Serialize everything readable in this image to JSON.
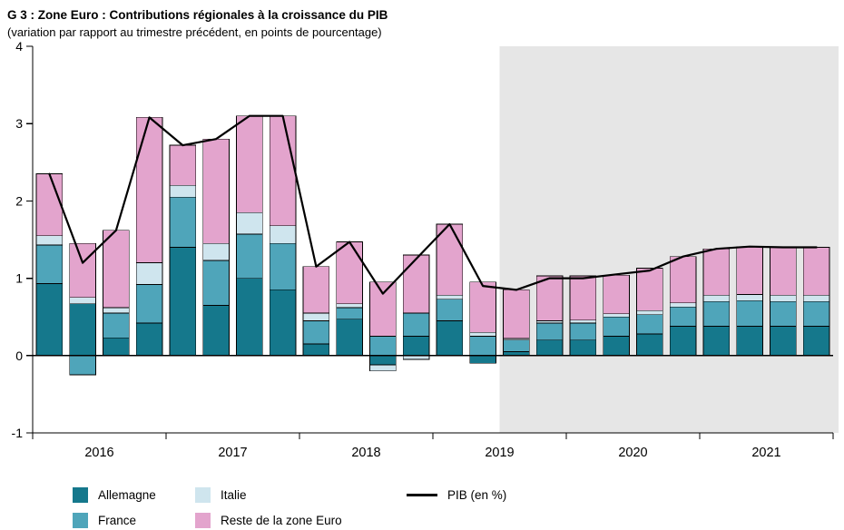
{
  "header": {
    "title": "G 3 : Zone Euro : Contributions régionales à la croissance du PIB",
    "subtitle": "(variation par rapport au trimestre précédent, en points de pourcentage)"
  },
  "legend": {
    "items": [
      {
        "label": "Allemagne",
        "color": "#15788c"
      },
      {
        "label": "France",
        "color": "#4fa5ba"
      },
      {
        "label": "Italie",
        "color": "#cfe5ee"
      },
      {
        "label": "Reste de la zone Euro",
        "color": "#e3a4cd"
      }
    ],
    "line": {
      "label": "PIB (en %)",
      "color": "#000000"
    }
  },
  "chart_data": {
    "type": "bar",
    "stacked": true,
    "title": "G 3 : Zone Euro : Contributions régionales à la croissance du PIB",
    "subtitle": "(variation par rapport au trimestre précédent, en points de pourcentage)",
    "categories": [
      "2016T1",
      "2016T2",
      "2016T3",
      "2016T4",
      "2017T1",
      "2017T2",
      "2017T3",
      "2017T4",
      "2018T1",
      "2018T2",
      "2018T3",
      "2018T4",
      "2019T1",
      "2019T2",
      "2019T3",
      "2019T4",
      "2020T1",
      "2020T2",
      "2020T3",
      "2020T4",
      "2021T1",
      "2021T2",
      "2021T3",
      "2021T4"
    ],
    "x_years": [
      "2016",
      "2017",
      "2018",
      "2019",
      "2020",
      "2021"
    ],
    "quarters_per_year": 4,
    "ylim": [
      -1,
      4
    ],
    "yticks": [
      -1,
      0,
      1,
      2,
      3,
      4
    ],
    "grid": false,
    "legend_position": "bottom",
    "forecast_start_index": 14,
    "forecast_bg": "#e6e6e6",
    "series": [
      {
        "name": "Allemagne",
        "color": "#15788c",
        "values": [
          0.93,
          0.67,
          0.23,
          0.42,
          1.4,
          0.65,
          1.0,
          0.85,
          0.15,
          0.47,
          -0.12,
          0.25,
          0.45,
          -0.1,
          0.05,
          0.2,
          0.2,
          0.25,
          0.28,
          0.38,
          0.38,
          0.38,
          0.38,
          0.38
        ]
      },
      {
        "name": "France",
        "color": "#4fa5ba",
        "values": [
          0.5,
          -0.25,
          0.32,
          0.5,
          0.65,
          0.58,
          0.57,
          0.6,
          0.3,
          0.15,
          0.25,
          0.3,
          0.28,
          0.25,
          0.15,
          0.22,
          0.22,
          0.25,
          0.25,
          0.25,
          0.32,
          0.33,
          0.32,
          0.32
        ]
      },
      {
        "name": "Italie",
        "color": "#cfe5ee",
        "values": [
          0.12,
          0.08,
          0.07,
          0.28,
          0.15,
          0.22,
          0.28,
          0.23,
          0.1,
          0.05,
          -0.08,
          -0.05,
          0.05,
          0.05,
          0.02,
          0.03,
          0.04,
          0.04,
          0.05,
          0.05,
          0.08,
          0.08,
          0.08,
          0.08
        ]
      },
      {
        "name": "Reste de la zone Euro",
        "color": "#e3a4cd",
        "values": [
          0.8,
          0.7,
          1.0,
          1.88,
          0.52,
          1.35,
          1.25,
          1.42,
          0.6,
          0.8,
          0.7,
          0.75,
          0.92,
          0.65,
          0.63,
          0.58,
          0.57,
          0.5,
          0.55,
          0.6,
          0.6,
          0.62,
          0.62,
          0.62
        ]
      }
    ],
    "line": {
      "name": "PIB (en %)",
      "color": "#000000",
      "values": [
        2.35,
        1.2,
        1.62,
        3.08,
        2.72,
        2.8,
        3.1,
        3.1,
        1.15,
        1.47,
        0.8,
        1.25,
        1.7,
        0.9,
        0.85,
        1.0,
        1.0,
        1.05,
        1.1,
        1.28,
        1.38,
        1.41,
        1.4,
        1.4
      ]
    }
  }
}
